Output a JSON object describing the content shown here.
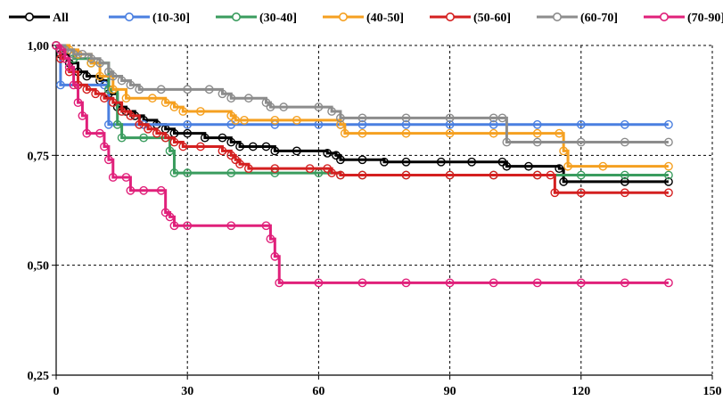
{
  "chart_data": {
    "type": "line",
    "title": "",
    "xlabel": "",
    "ylabel": "",
    "xlim": [
      0,
      150
    ],
    "ylim": [
      0.25,
      1.0
    ],
    "x_ticks": [
      0,
      30,
      60,
      90,
      120,
      150
    ],
    "x_tick_labels": [
      "0",
      "30",
      "60",
      "90",
      "120",
      "150"
    ],
    "y_ticks": [
      0.25,
      0.5,
      0.75,
      1.0
    ],
    "y_tick_labels": [
      "0,25",
      "0,50",
      "0,75",
      "1,00"
    ],
    "grid": "dashed",
    "legend_position": "top",
    "step": true,
    "series": [
      {
        "name": "All",
        "color": "#000000",
        "points": [
          [
            0,
            1.0
          ],
          [
            1,
            0.98
          ],
          [
            3,
            0.96
          ],
          [
            5,
            0.94
          ],
          [
            7,
            0.93
          ],
          [
            10,
            0.92
          ],
          [
            12,
            0.89
          ],
          [
            14,
            0.86
          ],
          [
            16,
            0.85
          ],
          [
            18,
            0.84
          ],
          [
            20,
            0.83
          ],
          [
            23,
            0.82
          ],
          [
            25,
            0.81
          ],
          [
            27,
            0.8
          ],
          [
            30,
            0.8
          ],
          [
            34,
            0.79
          ],
          [
            38,
            0.79
          ],
          [
            40,
            0.78
          ],
          [
            42,
            0.77
          ],
          [
            45,
            0.77
          ],
          [
            48,
            0.77
          ],
          [
            50,
            0.76
          ],
          [
            55,
            0.76
          ],
          [
            62,
            0.755
          ],
          [
            64,
            0.75
          ],
          [
            65,
            0.74
          ],
          [
            70,
            0.74
          ],
          [
            75,
            0.735
          ],
          [
            80,
            0.735
          ],
          [
            88,
            0.735
          ],
          [
            95,
            0.735
          ],
          [
            102,
            0.735
          ],
          [
            103,
            0.725
          ],
          [
            108,
            0.725
          ],
          [
            115,
            0.72
          ],
          [
            116,
            0.69
          ],
          [
            130,
            0.69
          ],
          [
            140,
            0.69
          ]
        ]
      },
      {
        "name": "(10-30]",
        "color": "#4a7fe0",
        "points": [
          [
            0,
            1.0
          ],
          [
            1,
            0.91
          ],
          [
            5,
            0.91
          ],
          [
            11,
            0.91
          ],
          [
            12,
            0.82
          ],
          [
            20,
            0.82
          ],
          [
            30,
            0.82
          ],
          [
            40,
            0.82
          ],
          [
            50,
            0.82
          ],
          [
            60,
            0.82
          ],
          [
            65,
            0.82
          ],
          [
            70,
            0.82
          ],
          [
            80,
            0.82
          ],
          [
            90,
            0.82
          ],
          [
            100,
            0.82
          ],
          [
            110,
            0.82
          ],
          [
            120,
            0.82
          ],
          [
            130,
            0.82
          ],
          [
            140,
            0.82
          ]
        ]
      },
      {
        "name": "(30-40]",
        "color": "#3a9c5e",
        "points": [
          [
            0,
            1.0
          ],
          [
            2,
            0.99
          ],
          [
            4,
            0.97
          ],
          [
            8,
            0.96
          ],
          [
            12,
            0.9
          ],
          [
            14,
            0.82
          ],
          [
            15,
            0.79
          ],
          [
            20,
            0.79
          ],
          [
            25,
            0.79
          ],
          [
            26,
            0.76
          ],
          [
            27,
            0.71
          ],
          [
            30,
            0.71
          ],
          [
            40,
            0.71
          ],
          [
            50,
            0.71
          ],
          [
            60,
            0.71
          ],
          [
            65,
            0.705
          ],
          [
            70,
            0.705
          ],
          [
            80,
            0.705
          ],
          [
            90,
            0.705
          ],
          [
            100,
            0.705
          ],
          [
            110,
            0.705
          ],
          [
            120,
            0.705
          ],
          [
            130,
            0.705
          ],
          [
            140,
            0.705
          ]
        ]
      },
      {
        "name": "(40-50]",
        "color": "#f5a020",
        "points": [
          [
            0,
            1.0
          ],
          [
            3,
            0.99
          ],
          [
            5,
            0.98
          ],
          [
            8,
            0.96
          ],
          [
            10,
            0.93
          ],
          [
            13,
            0.9
          ],
          [
            16,
            0.88
          ],
          [
            22,
            0.88
          ],
          [
            25,
            0.87
          ],
          [
            27,
            0.86
          ],
          [
            29,
            0.85
          ],
          [
            33,
            0.85
          ],
          [
            40,
            0.84
          ],
          [
            41,
            0.83
          ],
          [
            43,
            0.83
          ],
          [
            50,
            0.83
          ],
          [
            55,
            0.83
          ],
          [
            65,
            0.82
          ],
          [
            66,
            0.8
          ],
          [
            70,
            0.8
          ],
          [
            80,
            0.8
          ],
          [
            90,
            0.8
          ],
          [
            100,
            0.8
          ],
          [
            110,
            0.8
          ],
          [
            115,
            0.8
          ],
          [
            116,
            0.76
          ],
          [
            117,
            0.725
          ],
          [
            125,
            0.725
          ],
          [
            140,
            0.725
          ]
        ]
      },
      {
        "name": "(50-60]",
        "color": "#d42020",
        "points": [
          [
            0,
            1.0
          ],
          [
            1,
            0.97
          ],
          [
            3,
            0.94
          ],
          [
            5,
            0.91
          ],
          [
            7,
            0.9
          ],
          [
            9,
            0.89
          ],
          [
            11,
            0.88
          ],
          [
            13,
            0.87
          ],
          [
            15,
            0.85
          ],
          [
            17,
            0.84
          ],
          [
            19,
            0.82
          ],
          [
            21,
            0.81
          ],
          [
            23,
            0.8
          ],
          [
            25,
            0.79
          ],
          [
            27,
            0.78
          ],
          [
            29,
            0.77
          ],
          [
            33,
            0.77
          ],
          [
            38,
            0.76
          ],
          [
            40,
            0.75
          ],
          [
            41,
            0.74
          ],
          [
            42,
            0.73
          ],
          [
            44,
            0.72
          ],
          [
            50,
            0.72
          ],
          [
            58,
            0.72
          ],
          [
            62,
            0.72
          ],
          [
            63,
            0.71
          ],
          [
            65,
            0.705
          ],
          [
            70,
            0.705
          ],
          [
            80,
            0.705
          ],
          [
            90,
            0.705
          ],
          [
            100,
            0.705
          ],
          [
            110,
            0.705
          ],
          [
            113,
            0.705
          ],
          [
            114,
            0.665
          ],
          [
            120,
            0.665
          ],
          [
            130,
            0.665
          ],
          [
            140,
            0.665
          ]
        ]
      },
      {
        "name": "(60-70]",
        "color": "#8c8c8c",
        "points": [
          [
            0,
            1.0
          ],
          [
            2,
            0.99
          ],
          [
            4,
            0.98
          ],
          [
            6,
            0.98
          ],
          [
            8,
            0.97
          ],
          [
            10,
            0.96
          ],
          [
            12,
            0.94
          ],
          [
            13,
            0.93
          ],
          [
            15,
            0.92
          ],
          [
            17,
            0.91
          ],
          [
            19,
            0.9
          ],
          [
            24,
            0.9
          ],
          [
            30,
            0.9
          ],
          [
            35,
            0.9
          ],
          [
            38,
            0.89
          ],
          [
            40,
            0.88
          ],
          [
            44,
            0.88
          ],
          [
            48,
            0.87
          ],
          [
            49,
            0.86
          ],
          [
            52,
            0.86
          ],
          [
            60,
            0.86
          ],
          [
            63,
            0.85
          ],
          [
            65,
            0.835
          ],
          [
            70,
            0.835
          ],
          [
            80,
            0.835
          ],
          [
            90,
            0.835
          ],
          [
            100,
            0.835
          ],
          [
            102,
            0.835
          ],
          [
            103,
            0.78
          ],
          [
            110,
            0.78
          ],
          [
            120,
            0.78
          ],
          [
            130,
            0.78
          ],
          [
            140,
            0.78
          ]
        ]
      },
      {
        "name": "(70-90]",
        "color": "#e0207a",
        "points": [
          [
            0,
            1.0
          ],
          [
            1,
            0.99
          ],
          [
            2,
            0.97
          ],
          [
            3,
            0.95
          ],
          [
            4,
            0.91
          ],
          [
            5,
            0.87
          ],
          [
            6,
            0.84
          ],
          [
            7,
            0.8
          ],
          [
            10,
            0.8
          ],
          [
            11,
            0.77
          ],
          [
            12,
            0.74
          ],
          [
            13,
            0.7
          ],
          [
            16,
            0.7
          ],
          [
            17,
            0.67
          ],
          [
            20,
            0.67
          ],
          [
            24,
            0.67
          ],
          [
            25,
            0.62
          ],
          [
            26,
            0.61
          ],
          [
            27,
            0.59
          ],
          [
            30,
            0.59
          ],
          [
            40,
            0.59
          ],
          [
            48,
            0.59
          ],
          [
            49,
            0.56
          ],
          [
            50,
            0.52
          ],
          [
            51,
            0.46
          ],
          [
            60,
            0.46
          ],
          [
            70,
            0.46
          ],
          [
            80,
            0.46
          ],
          [
            90,
            0.46
          ],
          [
            100,
            0.46
          ],
          [
            110,
            0.46
          ],
          [
            120,
            0.46
          ],
          [
            130,
            0.46
          ],
          [
            140,
            0.46
          ]
        ]
      }
    ]
  }
}
